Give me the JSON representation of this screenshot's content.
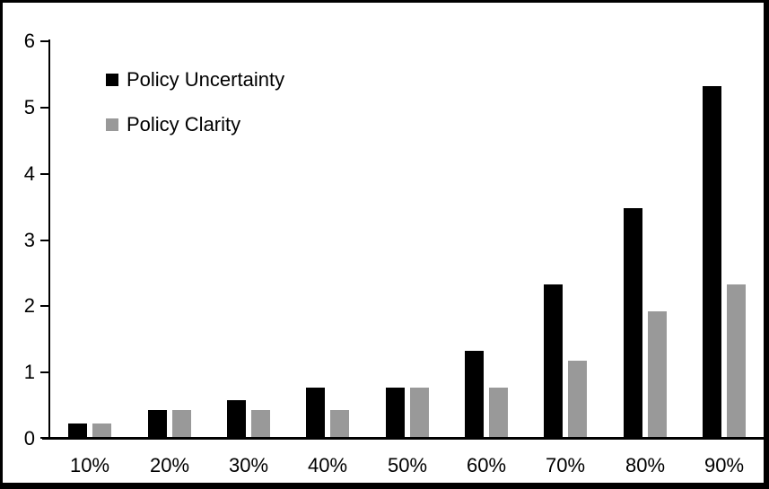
{
  "chart_data": {
    "type": "bar",
    "title": "",
    "xlabel": "",
    "ylabel": "",
    "categories": [
      "10%",
      "20%",
      "30%",
      "40%",
      "50%",
      "60%",
      "70%",
      "80%",
      "90%"
    ],
    "series": [
      {
        "name": "Policy Uncertainty",
        "color": "#000000",
        "values": [
          0.2,
          0.4,
          0.55,
          0.75,
          0.75,
          1.3,
          2.3,
          3.45,
          5.3
        ]
      },
      {
        "name": "Policy Clarity",
        "color": "#999999",
        "values": [
          0.2,
          0.4,
          0.4,
          0.4,
          0.75,
          0.75,
          1.15,
          1.9,
          2.3
        ]
      }
    ],
    "ylim": [
      0,
      6
    ],
    "yticks": [
      "0",
      "1",
      "2",
      "3",
      "4",
      "5",
      "6"
    ],
    "grid": false,
    "legend_position": "top-left"
  },
  "colors": {
    "background": "#ffffff",
    "frame": "#000000",
    "axis": "#000000"
  }
}
